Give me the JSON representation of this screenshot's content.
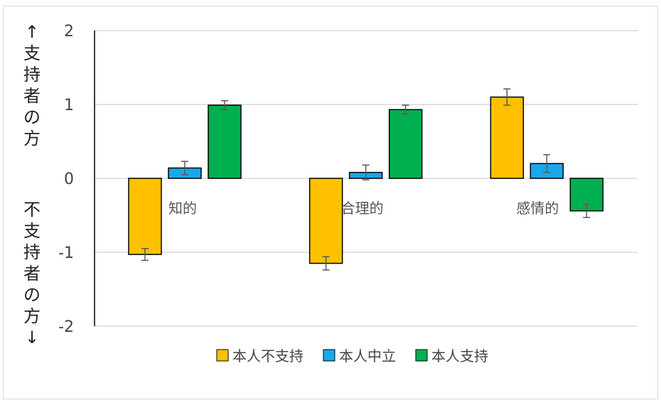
{
  "chart_data": {
    "type": "bar",
    "categories": [
      "知的",
      "合理的",
      "感情的"
    ],
    "series": [
      {
        "name": "本人不支持",
        "color": "#FFC000",
        "values": [
          -1.03,
          -1.15,
          1.1
        ],
        "errors": [
          0.08,
          0.09,
          0.11
        ]
      },
      {
        "name": "本人中立",
        "color": "#1AA7EC",
        "values": [
          0.14,
          0.08,
          0.2
        ],
        "errors": [
          0.09,
          0.1,
          0.12
        ]
      },
      {
        "name": "本人支持",
        "color": "#00B050",
        "values": [
          0.99,
          0.93,
          -0.44
        ],
        "errors": [
          0.06,
          0.06,
          0.09
        ]
      }
    ],
    "ylim": [
      -2,
      2
    ],
    "yticks": [
      "2",
      "1",
      "0",
      "-1",
      "-2"
    ],
    "ylabel_top": "↑支持者の方",
    "ylabel_bottom": "不支持者の方↓",
    "grid": true,
    "legend": "bottom"
  }
}
